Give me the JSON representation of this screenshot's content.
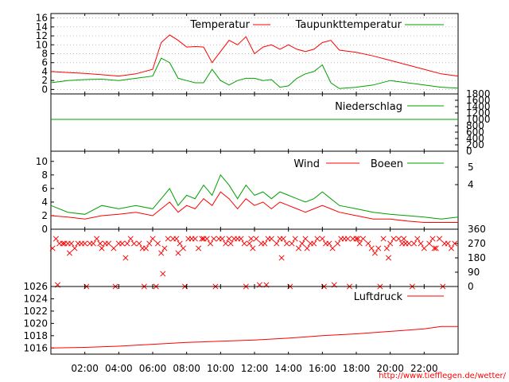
{
  "credit": "http://www.tiefflegen.de/wetter/",
  "colors": {
    "red": "#ff0000",
    "green": "#00a000",
    "axis": "#000000",
    "grid": "#a0a0a0"
  },
  "x_axis": {
    "ticks": [
      "02:00",
      "04:00",
      "06:00",
      "08:00",
      "10:00",
      "12:00",
      "14:00",
      "16:00",
      "18:00",
      "20:00",
      "22:00"
    ],
    "range_hours": [
      0,
      24
    ]
  },
  "chart_data": [
    {
      "type": "line",
      "panel": "temperature",
      "ylim": [
        -1,
        17
      ],
      "yticks": [
        "0",
        "2",
        "4",
        "6",
        "8",
        "10",
        "12",
        "14",
        "16"
      ],
      "grid": true,
      "series": [
        {
          "name": "Temperatur",
          "color": "#ff0000",
          "x": [
            0,
            1,
            2,
            3,
            4,
            5,
            6,
            6.5,
            7,
            7.5,
            8,
            8.5,
            9,
            9.5,
            10,
            10.5,
            11,
            11.5,
            12,
            12.5,
            13,
            13.5,
            14,
            14.5,
            15,
            15.5,
            16,
            16.5,
            17,
            18,
            19,
            20,
            21,
            22,
            23,
            24
          ],
          "y": [
            4,
            3.8,
            3.6,
            3.3,
            3.0,
            3.5,
            4.5,
            10.5,
            12.2,
            11.0,
            9.5,
            9.6,
            9.5,
            6.0,
            8.5,
            11.0,
            10.0,
            11.8,
            8.0,
            9.5,
            10.0,
            9.0,
            10.0,
            9.0,
            8.5,
            9.0,
            10.5,
            11.0,
            8.8,
            8.3,
            7.5,
            6.5,
            5.5,
            4.5,
            3.5,
            3.0
          ]
        },
        {
          "name": "Taupunkttemperatur",
          "color": "#00a000",
          "x": [
            0,
            1,
            2,
            3,
            4,
            5,
            6,
            6.5,
            7,
            7.5,
            8,
            8.5,
            9,
            9.5,
            10,
            10.5,
            11,
            11.5,
            12,
            12.5,
            13,
            13.5,
            14,
            14.5,
            15,
            15.5,
            16,
            16.5,
            17,
            18,
            19,
            20,
            21,
            22,
            23,
            24
          ],
          "y": [
            1.5,
            2.0,
            2.2,
            2.3,
            2.0,
            2.5,
            3.0,
            7.0,
            6.0,
            2.5,
            2.0,
            1.5,
            1.5,
            4.5,
            2.0,
            1.0,
            2.0,
            2.5,
            2.5,
            2.0,
            2.2,
            0.5,
            0.8,
            2.5,
            3.5,
            4.0,
            5.5,
            1.5,
            0.2,
            0.5,
            1.0,
            2.0,
            1.5,
            1.0,
            0.5,
            0.3
          ]
        }
      ]
    },
    {
      "type": "line",
      "panel": "precipitation",
      "ylim": [
        0,
        1800
      ],
      "yticks": [
        "0",
        "200",
        "400",
        "600",
        "800",
        "1000",
        "1200",
        "1400",
        "1600",
        "1800"
      ],
      "series": [
        {
          "name": "Niederschlag",
          "color": "#00a000",
          "x": [
            0,
            24
          ],
          "y": [
            1000,
            1000
          ]
        }
      ]
    },
    {
      "type": "line",
      "panel": "wind",
      "ylim": [
        0,
        11.5
      ],
      "yticks": [
        "0",
        "2",
        "4",
        "6",
        "8",
        "10"
      ],
      "yticks_right": [
        "4",
        "5"
      ],
      "series": [
        {
          "name": "Wind",
          "color": "#ff0000",
          "x": [
            0,
            1,
            2,
            3,
            4,
            5,
            6,
            6.5,
            7,
            7.5,
            8,
            8.5,
            9,
            9.5,
            10,
            10.5,
            11,
            11.5,
            12,
            12.5,
            13,
            13.5,
            14,
            14.5,
            15,
            15.5,
            16,
            16.5,
            17,
            18,
            19,
            20,
            21,
            22,
            23,
            24
          ],
          "y": [
            2.0,
            1.8,
            1.5,
            2.0,
            2.2,
            2.5,
            2.0,
            3.0,
            4.0,
            2.5,
            3.5,
            3.0,
            4.5,
            3.5,
            5.5,
            4.5,
            3.0,
            4.5,
            3.5,
            4.0,
            3.0,
            4.0,
            3.5,
            3.0,
            2.5,
            3.0,
            3.5,
            3.0,
            2.5,
            2.0,
            1.5,
            1.5,
            1.2,
            1.0,
            1.0,
            1.0
          ]
        },
        {
          "name": "Boeen",
          "color": "#00a000",
          "x": [
            0,
            1,
            2,
            3,
            4,
            5,
            6,
            6.5,
            7,
            7.5,
            8,
            8.5,
            9,
            9.5,
            10,
            10.5,
            11,
            11.5,
            12,
            12.5,
            13,
            13.5,
            14,
            14.5,
            15,
            15.5,
            16,
            16.5,
            17,
            18,
            19,
            20,
            21,
            22,
            23,
            24
          ],
          "y": [
            3.5,
            2.5,
            2.2,
            3.5,
            3.0,
            3.5,
            3.0,
            4.5,
            6.0,
            3.5,
            5.0,
            4.5,
            6.5,
            5.0,
            8.0,
            6.5,
            4.5,
            6.5,
            5.0,
            5.5,
            4.5,
            5.5,
            5.0,
            4.5,
            4.0,
            4.5,
            5.5,
            4.5,
            3.5,
            3.0,
            2.5,
            2.2,
            2.0,
            1.8,
            1.5,
            1.8
          ]
        }
      ]
    },
    {
      "type": "scatter",
      "panel": "wind-direction",
      "ylim": [
        0,
        360
      ],
      "yticks_right": [
        "0",
        "90",
        "180",
        "270",
        "360"
      ],
      "series": [
        {
          "name": "",
          "color": "#ff0000",
          "x": [
            0.1,
            0.3,
            0.5,
            0.7,
            1.0,
            1.2,
            1.4,
            1.6,
            1.8,
            2.0,
            2.3,
            2.5,
            2.7,
            2.9,
            3.2,
            3.4,
            3.7,
            4.0,
            4.2,
            4.5,
            4.7,
            4.9,
            5.2,
            5.4,
            5.6,
            5.8,
            6.0,
            6.3,
            6.5,
            6.7,
            6.9,
            7.2,
            7.4,
            7.6,
            7.8,
            8.1,
            8.3,
            8.5,
            8.7,
            9.0,
            9.2,
            9.4,
            9.6,
            9.9,
            10.1,
            10.3,
            10.5,
            10.8,
            11.0,
            11.2,
            11.4,
            11.7,
            11.9,
            12.1,
            12.4,
            12.6,
            12.8,
            13.0,
            13.3,
            13.5,
            13.7,
            13.9,
            14.2,
            14.4,
            14.6,
            14.8,
            15.1,
            15.3,
            15.5,
            15.7,
            16.0,
            16.2,
            16.4,
            16.6,
            16.9,
            17.1,
            17.3,
            17.5,
            17.8,
            18.0,
            18.2,
            18.4,
            18.7,
            18.9,
            19.1,
            19.3,
            19.6,
            19.8,
            20.0,
            20.2,
            20.5,
            20.7,
            20.9,
            21.1,
            21.4,
            21.6,
            21.8,
            22.0,
            22.3,
            22.5,
            22.7,
            22.9,
            23.2,
            23.4,
            23.6,
            23.8,
            0.4,
            2.1,
            3.8,
            5.5,
            6.2,
            7.9,
            9.7,
            11.5,
            12.3,
            12.7,
            14.1,
            16.1,
            17.6,
            19.4,
            21.3,
            23.1,
            1.1,
            4.4,
            7.5,
            10.6,
            13.6,
            16.7,
            19.9,
            22.6,
            0.8,
            3.0,
            6.6,
            8.9,
            11.8,
            15.0,
            18.1,
            20.8
          ],
          "y": [
            240,
            300,
            270,
            270,
            270,
            270,
            240,
            270,
            270,
            270,
            270,
            270,
            300,
            270,
            270,
            270,
            240,
            270,
            270,
            270,
            300,
            270,
            270,
            240,
            240,
            270,
            300,
            270,
            210,
            240,
            300,
            300,
            300,
            270,
            240,
            300,
            300,
            300,
            240,
            300,
            300,
            270,
            300,
            300,
            300,
            270,
            300,
            300,
            300,
            300,
            270,
            270,
            240,
            300,
            270,
            270,
            300,
            300,
            270,
            300,
            300,
            270,
            270,
            300,
            240,
            270,
            240,
            270,
            270,
            300,
            300,
            270,
            270,
            240,
            270,
            300,
            300,
            300,
            300,
            300,
            270,
            300,
            270,
            240,
            210,
            240,
            300,
            240,
            270,
            300,
            300,
            270,
            270,
            270,
            270,
            300,
            270,
            240,
            270,
            300,
            240,
            300,
            270,
            270,
            240,
            270,
            10,
            0,
            0,
            0,
            0,
            0,
            0,
            0,
            10,
            10,
            0,
            0,
            0,
            0,
            0,
            0,
            210,
            180,
            210,
            270,
            180,
            10,
            180,
            240,
            270,
            240,
            80,
            300,
            300,
            300,
            300,
            300
          ]
        }
      ]
    },
    {
      "type": "line",
      "panel": "pressure",
      "ylim": [
        1015,
        1026
      ],
      "yticks": [
        "1016",
        "1018",
        "1020",
        "1022",
        "1024",
        "1026"
      ],
      "series": [
        {
          "name": "Luftdruck",
          "color": "#ff0000",
          "x": [
            0,
            2,
            4,
            6,
            8,
            10,
            12,
            14,
            16,
            18,
            20,
            22,
            23,
            24
          ],
          "y": [
            1016.0,
            1016.1,
            1016.3,
            1016.6,
            1016.9,
            1017.1,
            1017.3,
            1017.6,
            1018.0,
            1018.3,
            1018.7,
            1019.1,
            1019.5,
            1019.5
          ]
        }
      ]
    }
  ]
}
